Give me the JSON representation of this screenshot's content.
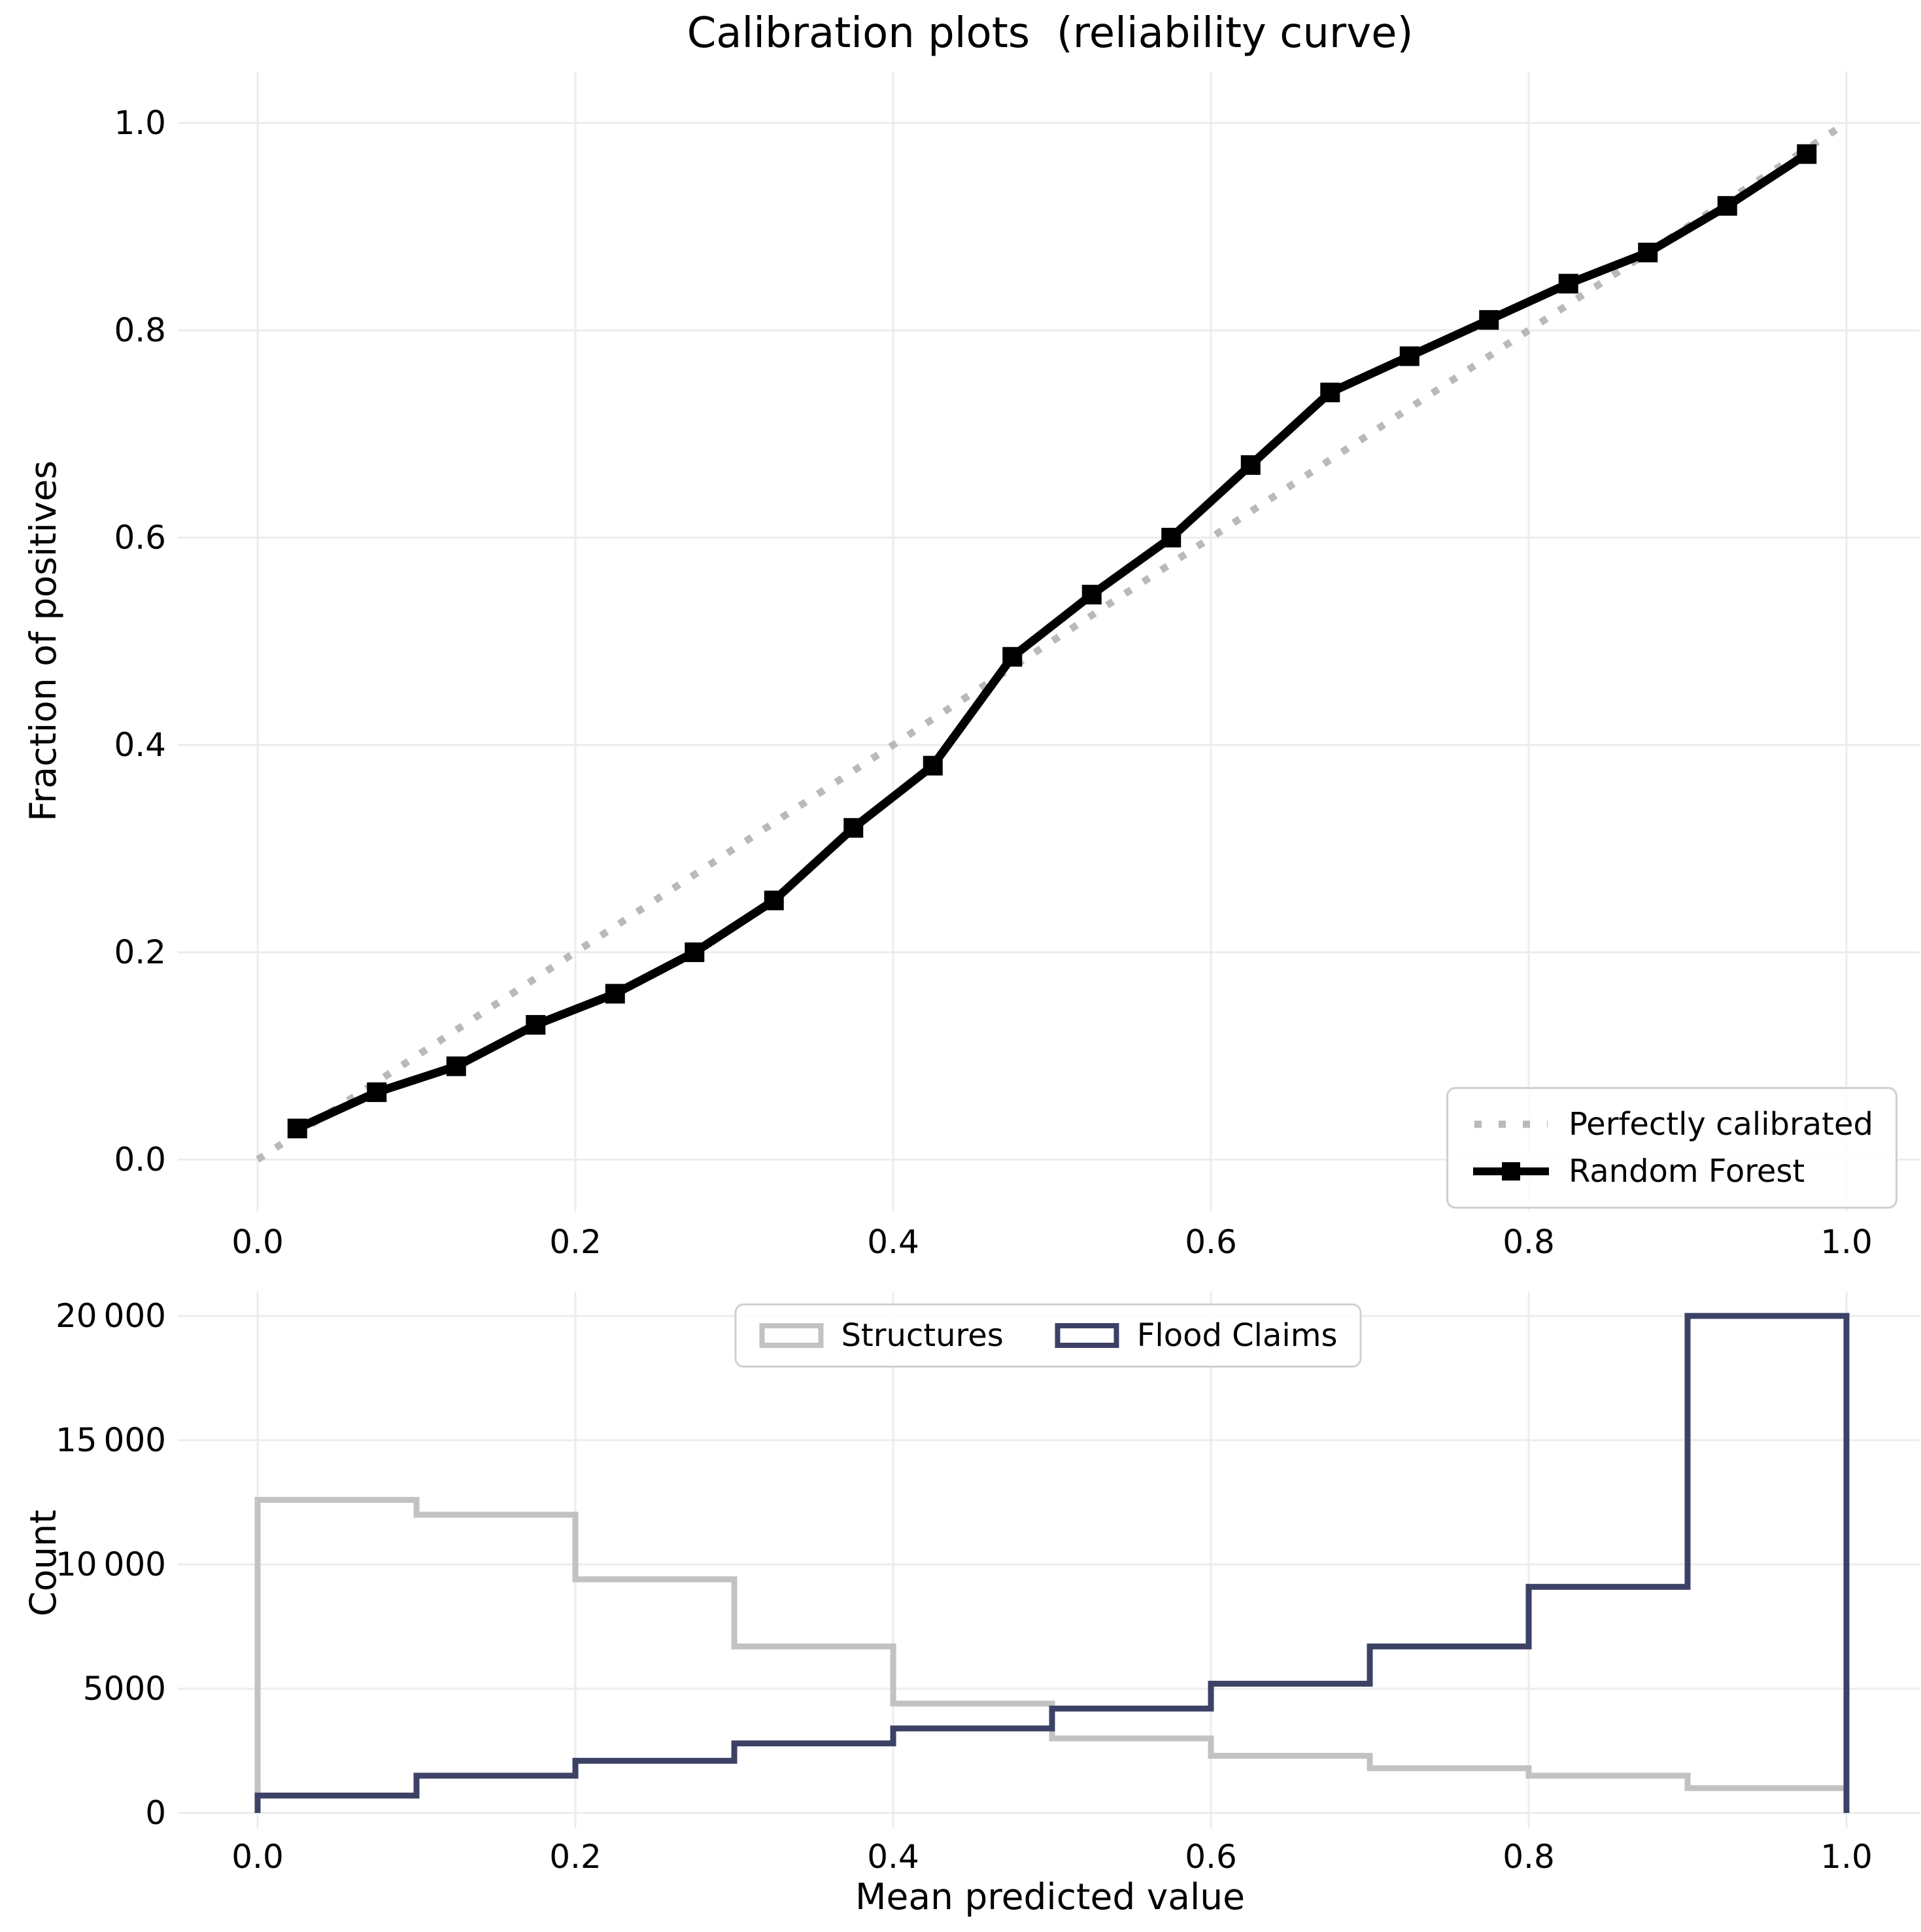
{
  "figure": {
    "title": "Calibration plots  (reliability curve)",
    "background": "#ffffff"
  },
  "chart_data": [
    {
      "id": "calibration-curve",
      "type": "line",
      "title": "Calibration plots  (reliability curve)",
      "xlabel": "",
      "ylabel": "Fraction of positives",
      "xlim": [
        -0.05,
        1.05
      ],
      "ylim": [
        -0.05,
        1.05
      ],
      "grid": true,
      "xtick_values": [
        0.0,
        0.2,
        0.4,
        0.6,
        0.8,
        1.0
      ],
      "xtick_labels": [
        "0.0",
        "0.2",
        "0.4",
        "0.6",
        "0.8",
        "1.0"
      ],
      "ytick_values": [
        0.0,
        0.2,
        0.4,
        0.6,
        0.8,
        1.0
      ],
      "ytick_labels": [
        "0.0",
        "0.2",
        "0.4",
        "0.6",
        "0.8",
        "1.0"
      ],
      "legend": {
        "location": "lower right"
      },
      "series": [
        {
          "name": "Perfectly calibrated",
          "style": "dotted",
          "color": "#b9b9b9",
          "marker": "none",
          "x": [
            0.0,
            1.0
          ],
          "y": [
            0.0,
            1.0
          ]
        },
        {
          "name": "Random Forest",
          "style": "solid",
          "color": "#000000",
          "marker": "square",
          "x": [
            0.025,
            0.075,
            0.125,
            0.175,
            0.225,
            0.275,
            0.325,
            0.375,
            0.425,
            0.475,
            0.525,
            0.575,
            0.625,
            0.675,
            0.725,
            0.775,
            0.825,
            0.875,
            0.925,
            0.975
          ],
          "y": [
            0.03,
            0.065,
            0.09,
            0.13,
            0.16,
            0.2,
            0.25,
            0.32,
            0.38,
            0.485,
            0.545,
            0.6,
            0.67,
            0.74,
            0.775,
            0.81,
            0.845,
            0.875,
            0.92,
            0.97
          ]
        }
      ]
    },
    {
      "id": "prediction-histogram",
      "type": "histogram-step",
      "xlabel": "Mean predicted value",
      "ylabel": "Count",
      "xlim": [
        -0.05,
        1.05
      ],
      "ylim": [
        0,
        21000
      ],
      "grid": true,
      "bin_edges": [
        0.0,
        0.1,
        0.2,
        0.3,
        0.4,
        0.5,
        0.6,
        0.7,
        0.8,
        0.9,
        1.0
      ],
      "xtick_values": [
        0.0,
        0.2,
        0.4,
        0.6,
        0.8,
        1.0
      ],
      "xtick_labels": [
        "0.0",
        "0.2",
        "0.4",
        "0.6",
        "0.8",
        "1.0"
      ],
      "ytick_values": [
        0,
        5000,
        10000,
        15000,
        20000
      ],
      "ytick_labels": [
        "0",
        "5000",
        "10 000",
        "15 000",
        "20 000"
      ],
      "legend": {
        "location": "upper center"
      },
      "series": [
        {
          "name": "Structures",
          "color": "#c2c2c2",
          "values": [
            12600,
            12000,
            9400,
            6700,
            4400,
            3000,
            2300,
            1800,
            1500,
            1000
          ]
        },
        {
          "name": "Flood Claims",
          "color": "#3c4166",
          "values": [
            700,
            1500,
            2100,
            2800,
            3400,
            4200,
            5200,
            6700,
            9100,
            20000
          ]
        }
      ]
    }
  ],
  "colors": {
    "grid": "#ececec",
    "text": "#000000",
    "legend_border": "#cfcfcf",
    "background": "#ffffff"
  }
}
